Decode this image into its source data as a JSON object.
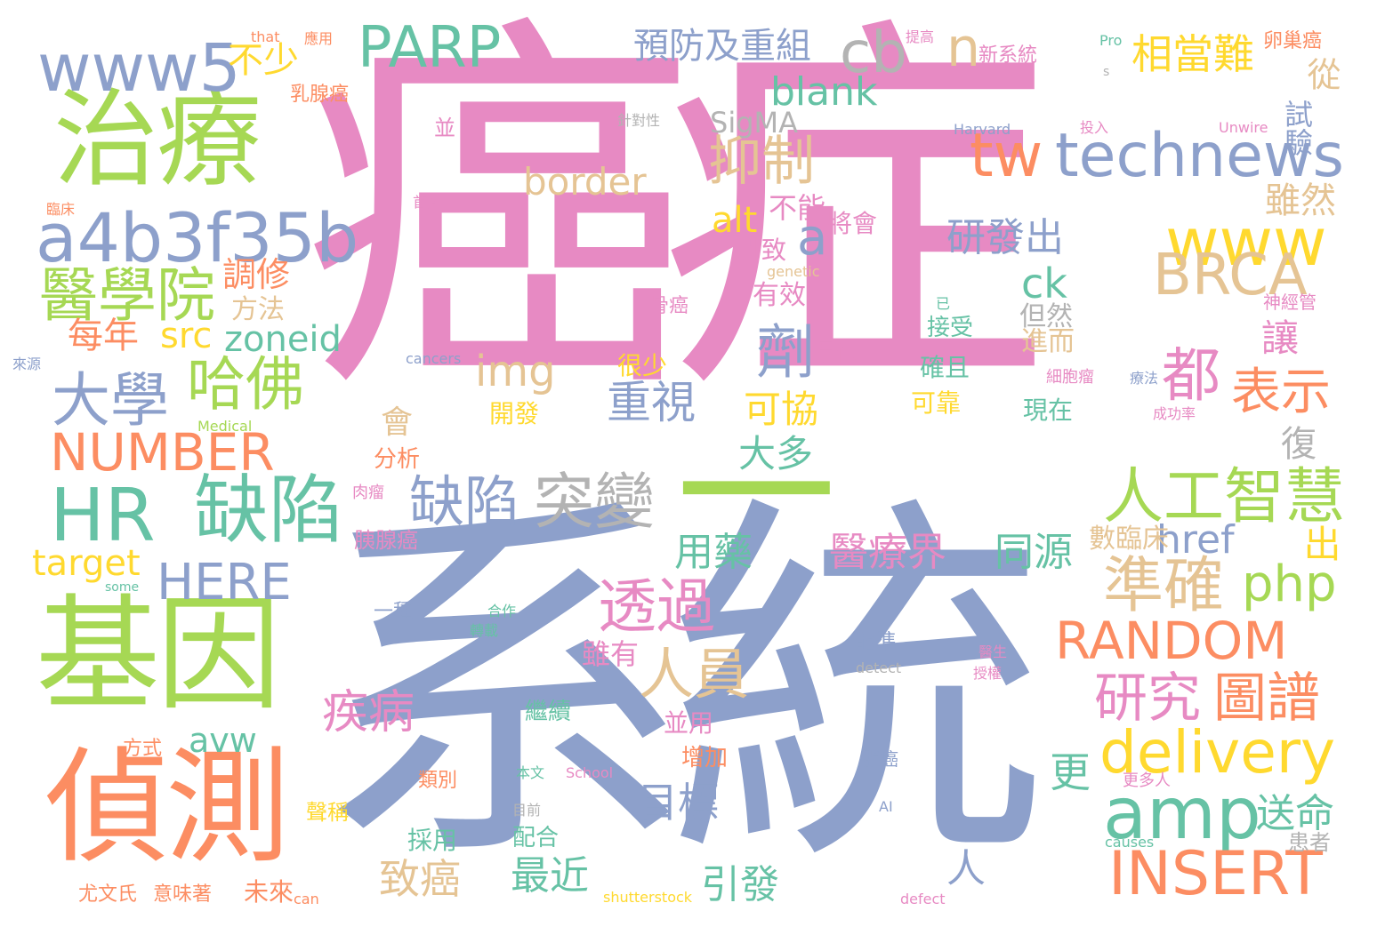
{
  "palette": {
    "pink": "#e78ac3",
    "blue": "#8da0cb",
    "green": "#a6d854",
    "orange": "#fc8d62",
    "teal": "#66c2a5",
    "yellow": "#ffd92f",
    "tan": "#e5c494",
    "gray": "#b3b3b3"
  },
  "words": [
    {
      "text": "癌症",
      "color": "pink"
    },
    {
      "text": "系統",
      "color": "blue"
    },
    {
      "text": "一",
      "color": "green"
    },
    {
      "text": "治療",
      "color": "green"
    },
    {
      "text": "基因",
      "color": "green"
    },
    {
      "text": "偵測",
      "color": "orange"
    },
    {
      "text": "www5",
      "color": "blue"
    },
    {
      "text": "a4b3f35b",
      "color": "blue"
    },
    {
      "text": "醫學院",
      "color": "green"
    },
    {
      "text": "哈佛",
      "color": "green"
    },
    {
      "text": "大學",
      "color": "blue"
    },
    {
      "text": "NUMBER",
      "color": "orange"
    },
    {
      "text": "HR",
      "color": "teal"
    },
    {
      "text": "缺陷",
      "color": "teal"
    },
    {
      "text": "HERE",
      "color": "blue"
    },
    {
      "text": "target",
      "color": "yellow"
    },
    {
      "text": "每年",
      "color": "orange"
    },
    {
      "text": "src",
      "color": "yellow"
    },
    {
      "text": "zoneid",
      "color": "teal"
    },
    {
      "text": "調修",
      "color": "orange"
    },
    {
      "text": "方法",
      "color": "tan"
    },
    {
      "text": "不少",
      "color": "yellow"
    },
    {
      "text": "PARP",
      "color": "teal"
    },
    {
      "text": "預防及重組",
      "color": "blue"
    },
    {
      "text": "cb",
      "color": "gray"
    },
    {
      "text": "n",
      "color": "tan"
    },
    {
      "text": "相當難",
      "color": "yellow"
    },
    {
      "text": "從",
      "color": "tan"
    },
    {
      "text": "試驗",
      "color": "blue"
    },
    {
      "text": "blank",
      "color": "teal"
    },
    {
      "text": "SigMA",
      "color": "gray"
    },
    {
      "text": "抑制",
      "color": "tan"
    },
    {
      "text": "border",
      "color": "tan"
    },
    {
      "text": "tw",
      "color": "orange"
    },
    {
      "text": "technews",
      "color": "blue"
    },
    {
      "text": "www",
      "color": "yellow"
    },
    {
      "text": "a",
      "color": "blue"
    },
    {
      "text": "雖然",
      "color": "tan"
    },
    {
      "text": "BRCA",
      "color": "tan"
    },
    {
      "text": "不能",
      "color": "pink"
    },
    {
      "text": "將會",
      "color": "pink"
    },
    {
      "text": "alt",
      "color": "yellow"
    },
    {
      "text": "引致",
      "color": "pink"
    },
    {
      "text": "研發出",
      "color": "blue"
    },
    {
      "text": "ck",
      "color": "teal"
    },
    {
      "text": "劑",
      "color": "blue"
    },
    {
      "text": "有效",
      "color": "pink"
    },
    {
      "text": "但然",
      "color": "gray"
    },
    {
      "text": "進而",
      "color": "tan"
    },
    {
      "text": "都",
      "color": "pink"
    },
    {
      "text": "讓",
      "color": "pink"
    },
    {
      "text": "表示",
      "color": "orange"
    },
    {
      "text": "img",
      "color": "tan"
    },
    {
      "text": "重視",
      "color": "blue"
    },
    {
      "text": "可協",
      "color": "yellow"
    },
    {
      "text": "大多",
      "color": "teal"
    },
    {
      "text": "會",
      "color": "tan"
    },
    {
      "text": "復",
      "color": "gray"
    },
    {
      "text": "缺陷",
      "color": "blue"
    },
    {
      "text": "突變",
      "color": "gray"
    },
    {
      "text": "人工智慧",
      "color": "green"
    },
    {
      "text": "準確",
      "color": "tan"
    },
    {
      "text": "php",
      "color": "green"
    },
    {
      "text": "RANDOM",
      "color": "orange"
    },
    {
      "text": "研究",
      "color": "pink"
    },
    {
      "text": "圖譜",
      "color": "orange"
    },
    {
      "text": "delivery",
      "color": "yellow"
    },
    {
      "text": "amp",
      "color": "teal"
    },
    {
      "text": "INSERT",
      "color": "orange"
    },
    {
      "text": "送命",
      "color": "teal"
    },
    {
      "text": "透過",
      "color": "pink"
    },
    {
      "text": "人員",
      "color": "tan"
    },
    {
      "text": "用藥",
      "color": "teal"
    },
    {
      "text": "醫療界",
      "color": "pink"
    },
    {
      "text": "同源",
      "color": "teal"
    },
    {
      "text": "href",
      "color": "blue"
    },
    {
      "text": "出",
      "color": "yellow"
    },
    {
      "text": "數臨床",
      "color": "tan"
    },
    {
      "text": "疾病",
      "color": "pink"
    },
    {
      "text": "雖有",
      "color": "pink"
    },
    {
      "text": "更",
      "color": "teal"
    },
    {
      "text": "目標",
      "color": "blue"
    },
    {
      "text": "致癌",
      "color": "tan"
    },
    {
      "text": "最近",
      "color": "teal"
    },
    {
      "text": "引發",
      "color": "teal"
    },
    {
      "text": "人",
      "color": "blue"
    },
    {
      "text": "avw",
      "color": "teal"
    },
    {
      "text": "開發",
      "color": "yellow"
    },
    {
      "text": "很少",
      "color": "yellow"
    },
    {
      "text": "並用",
      "color": "pink"
    },
    {
      "text": "增加",
      "color": "orange"
    },
    {
      "text": "採用",
      "color": "teal"
    },
    {
      "text": "配合",
      "color": "teal"
    },
    {
      "text": "繼續",
      "color": "teal"
    },
    {
      "text": "方式",
      "color": "orange"
    },
    {
      "text": "類別",
      "color": "orange"
    },
    {
      "text": "聲稱",
      "color": "yellow"
    },
    {
      "text": "尤文氏",
      "color": "orange"
    },
    {
      "text": "意味著",
      "color": "orange"
    },
    {
      "text": "未來",
      "color": "orange"
    },
    {
      "text": "can",
      "color": "orange"
    },
    {
      "text": "shutterstock",
      "color": "yellow"
    },
    {
      "text": "defect",
      "color": "pink"
    },
    {
      "text": "提供",
      "color": "pink"
    },
    {
      "text": "確且",
      "color": "teal"
    },
    {
      "text": "可靠",
      "color": "yellow"
    },
    {
      "text": "現在",
      "color": "teal"
    },
    {
      "text": "接受",
      "color": "teal"
    },
    {
      "text": "能準",
      "color": "blue"
    },
    {
      "text": "脂癌",
      "color": "blue"
    },
    {
      "text": "更多人",
      "color": "pink"
    },
    {
      "text": "患者",
      "color": "gray"
    },
    {
      "text": "that",
      "color": "orange"
    },
    {
      "text": "應用",
      "color": "orange"
    },
    {
      "text": "乳腺癌",
      "color": "orange"
    },
    {
      "text": "提高",
      "color": "pink"
    },
    {
      "text": "新系統",
      "color": "pink"
    },
    {
      "text": "Pro",
      "color": "teal"
    },
    {
      "text": "s",
      "color": "gray"
    },
    {
      "text": "卵巢癌",
      "color": "orange"
    },
    {
      "text": "並",
      "color": "pink"
    },
    {
      "text": "針對性",
      "color": "gray"
    },
    {
      "text": "Harvard",
      "color": "blue"
    },
    {
      "text": "投入",
      "color": "pink"
    },
    {
      "text": "Unwire",
      "color": "pink"
    },
    {
      "text": "臨床",
      "color": "orange"
    },
    {
      "text": "首圖",
      "color": "pink"
    },
    {
      "text": "genetic",
      "color": "tan"
    },
    {
      "text": "骨癌",
      "color": "pink"
    },
    {
      "text": "已",
      "color": "teal"
    },
    {
      "text": "神經管",
      "color": "pink"
    },
    {
      "text": "來源",
      "color": "blue"
    },
    {
      "text": "cancers",
      "color": "blue"
    },
    {
      "text": "細胞瘤",
      "color": "pink"
    },
    {
      "text": "療法",
      "color": "blue"
    },
    {
      "text": "Medical",
      "color": "green"
    },
    {
      "text": "成功率",
      "color": "pink"
    },
    {
      "text": "肉瘤",
      "color": "pink"
    },
    {
      "text": "分析",
      "color": "orange"
    },
    {
      "text": "胰腺癌",
      "color": "pink"
    },
    {
      "text": "some",
      "color": "teal"
    },
    {
      "text": "一種",
      "color": "blue"
    },
    {
      "text": "合作",
      "color": "teal"
    },
    {
      "text": "轉載",
      "color": "teal"
    },
    {
      "text": "detect",
      "color": "gray"
    },
    {
      "text": "醫生",
      "color": "pink"
    },
    {
      "text": "授權",
      "color": "pink"
    },
    {
      "text": "本文",
      "color": "teal"
    },
    {
      "text": "School",
      "color": "pink"
    },
    {
      "text": "目前",
      "color": "gray"
    },
    {
      "text": "AI",
      "color": "blue"
    },
    {
      "text": "causes",
      "color": "teal"
    }
  ]
}
